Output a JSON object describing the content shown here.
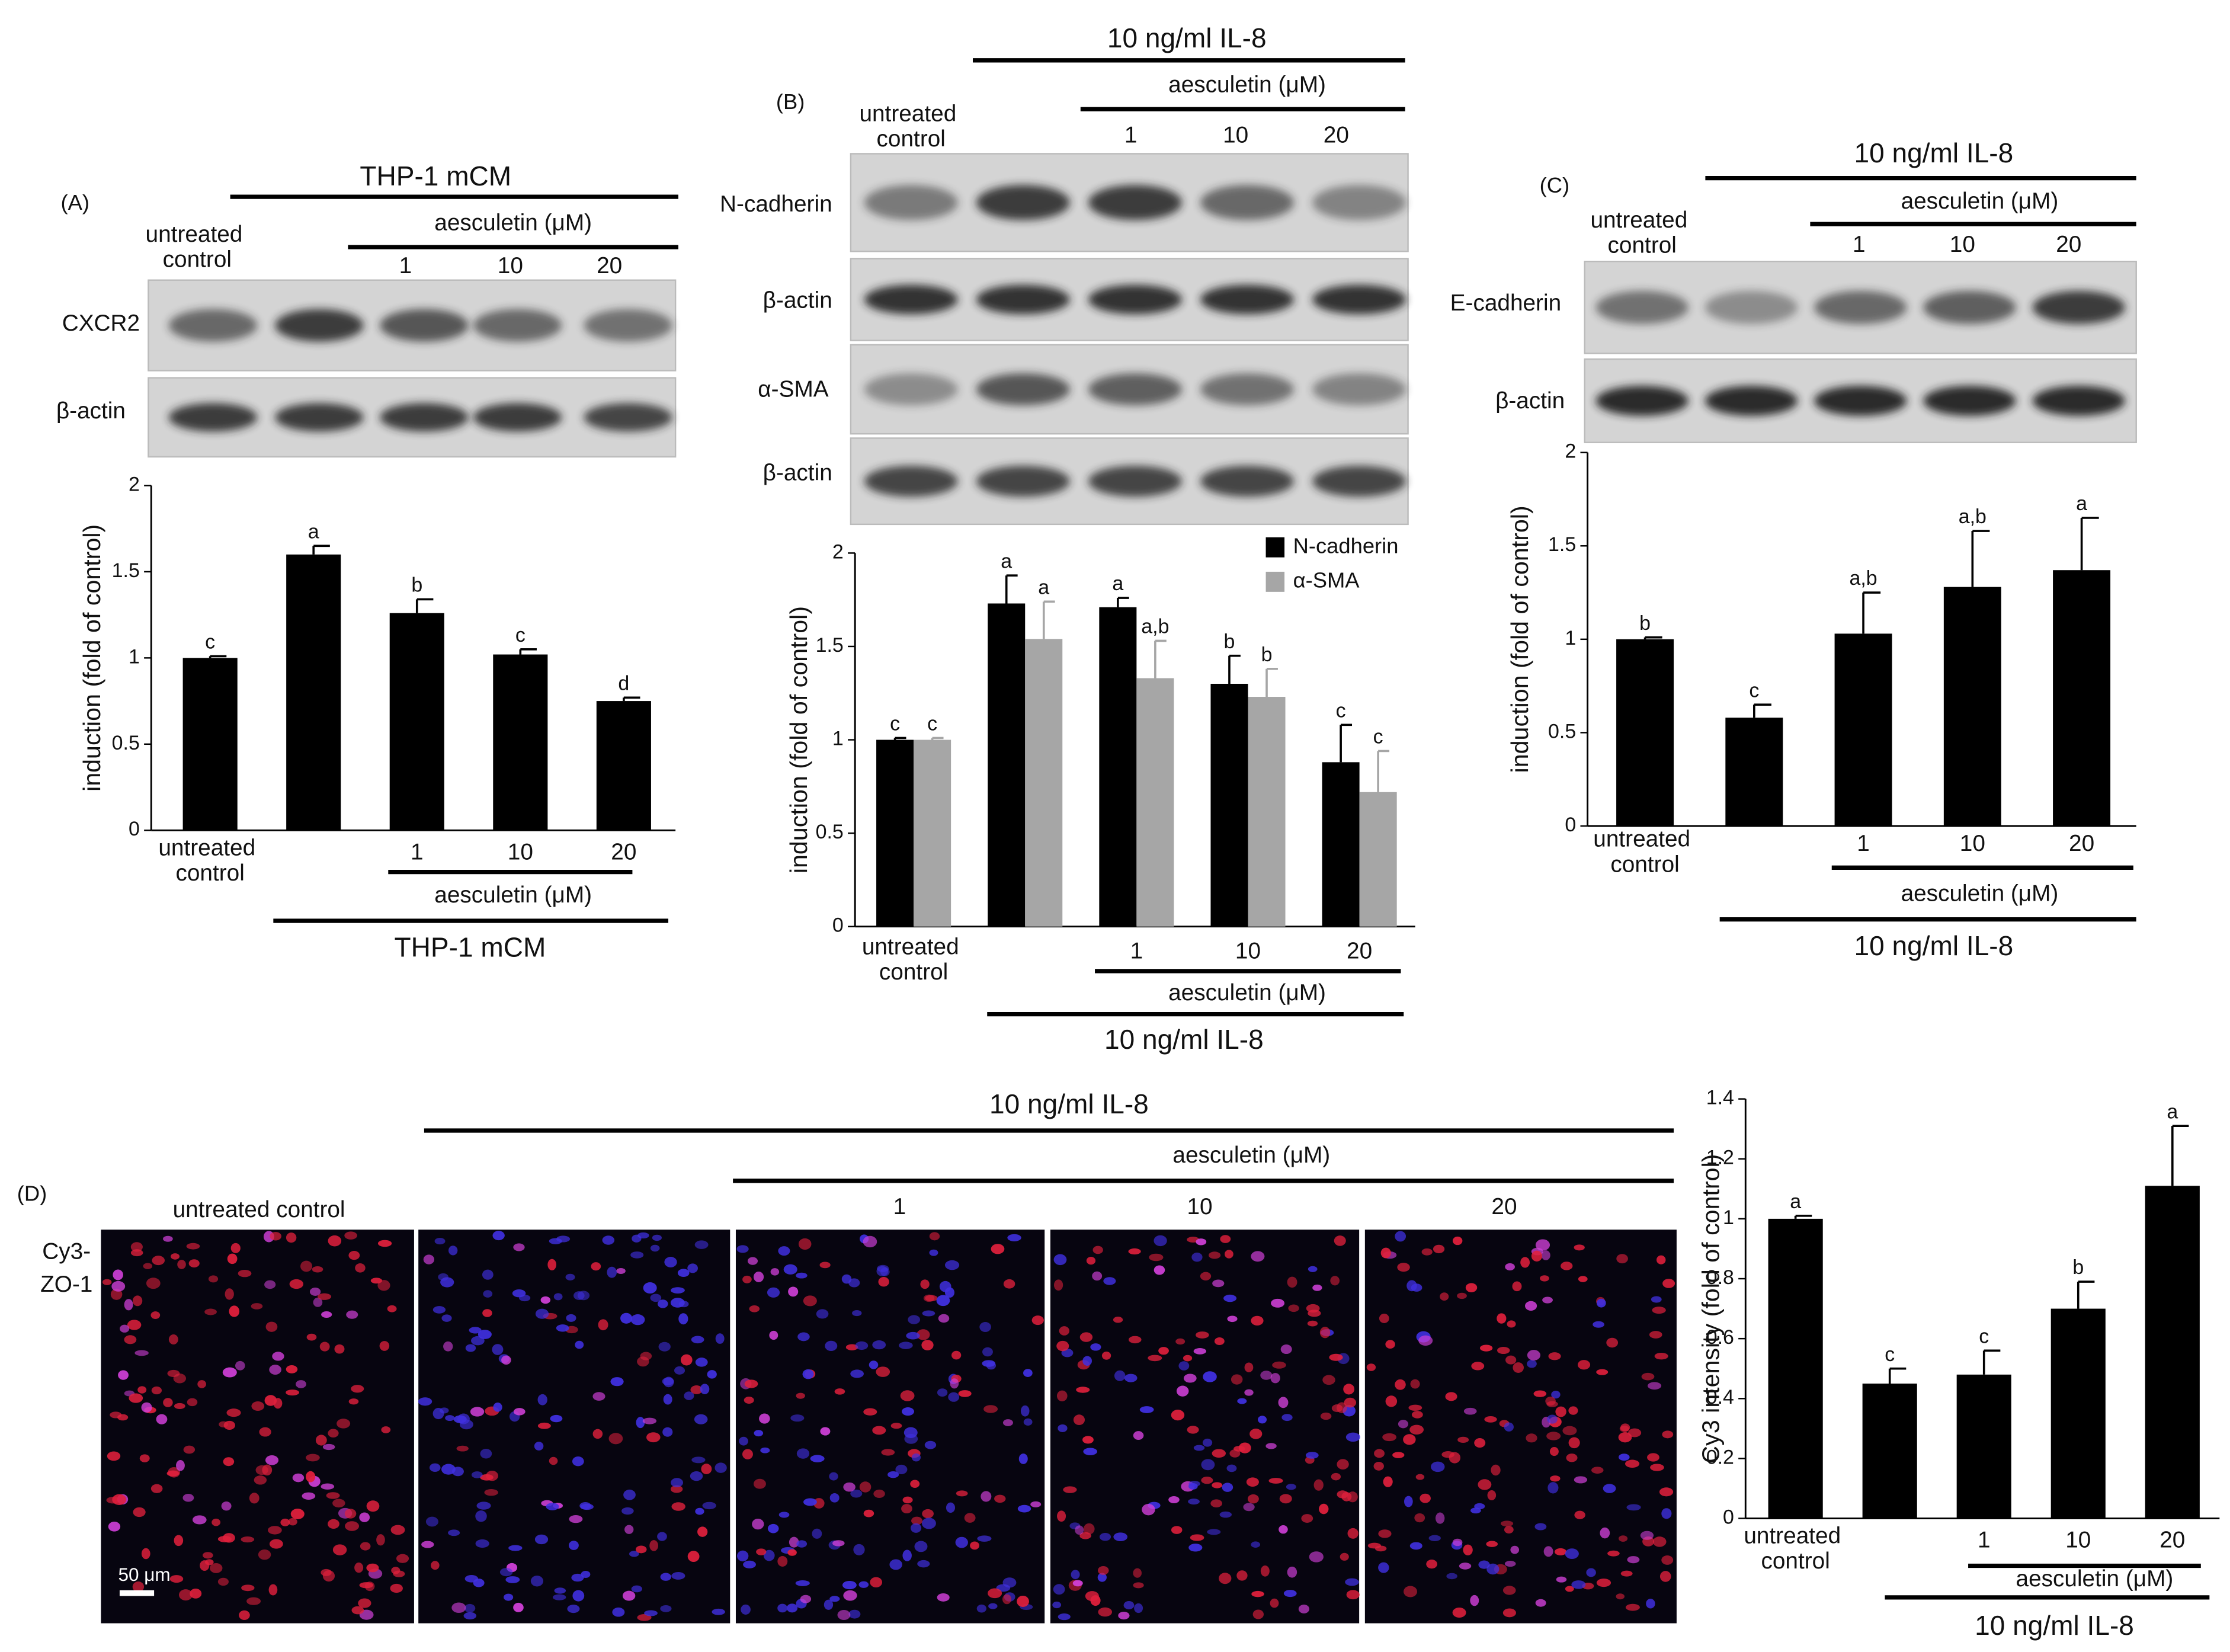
{
  "chart_data": [
    {
      "type": "bar",
      "panel": "(A)",
      "y_label": "induction (fold of control)",
      "categories": [
        "untreated control",
        null,
        "1",
        "10",
        "20"
      ],
      "values": [
        1.0,
        1.6,
        1.26,
        1.02,
        0.75
      ],
      "errors": [
        0.01,
        0.05,
        0.08,
        0.03,
        0.02
      ],
      "letters": [
        "c",
        "a",
        "b",
        "c",
        "d"
      ],
      "color": "#000000",
      "ylim": [
        0,
        2
      ],
      "yticks": [
        0,
        0.5,
        1,
        1.5,
        2
      ],
      "grid": false,
      "bottom": {
        "inhibitor": "aesculetin (μM)",
        "treatment": "THP-1 mCM"
      },
      "blot": {
        "header": {
          "treatment": "THP-1 mCM",
          "inhibitor": "aesculetin (μM)",
          "control": "untreated control",
          "doses": [
            "1",
            "10",
            "20"
          ]
        },
        "rows": [
          "CXCR2",
          "β-actin"
        ]
      }
    },
    {
      "type": "bar",
      "panel": "(B)",
      "y_label": "induction (fold of control)",
      "categories": [
        "untreated control",
        null,
        "1",
        "10",
        "20"
      ],
      "series": [
        {
          "name": "N-cadherin",
          "color": "#000000",
          "values": [
            1.0,
            1.73,
            1.71,
            1.3,
            0.88
          ],
          "errors": [
            0.01,
            0.15,
            0.05,
            0.15,
            0.2
          ],
          "letters": [
            "c",
            "a",
            "a",
            "b",
            "c"
          ]
        },
        {
          "name": "α-SMA",
          "color": "#a6a6a6",
          "values": [
            1.0,
            1.54,
            1.33,
            1.23,
            0.72
          ],
          "errors": [
            0.01,
            0.2,
            0.2,
            0.15,
            0.22
          ],
          "letters": [
            "c",
            "a",
            "a,b",
            "b",
            "c"
          ]
        }
      ],
      "legend": "upper right",
      "ylim": [
        0,
        2
      ],
      "yticks": [
        0,
        0.5,
        1,
        1.5,
        2
      ],
      "grid": false,
      "bottom": {
        "inhibitor": "aesculetin (μM)",
        "treatment": "10 ng/ml IL-8"
      },
      "blot": {
        "header": {
          "treatment": "10 ng/ml IL-8",
          "inhibitor": "aesculetin (μM)",
          "control": "untreated control",
          "doses": [
            "1",
            "10",
            "20"
          ]
        },
        "rows": [
          "N-cadherin",
          "β-actin",
          "α-SMA",
          "β-actin"
        ]
      }
    },
    {
      "type": "bar",
      "panel": "(C)",
      "y_label": "induction (fold of control)",
      "categories": [
        "untreated control",
        null,
        "1",
        "10",
        "20"
      ],
      "values": [
        1.0,
        0.58,
        1.03,
        1.28,
        1.37
      ],
      "errors": [
        0.01,
        0.07,
        0.22,
        0.3,
        0.28
      ],
      "letters": [
        "b",
        "c",
        "a,b",
        "a,b",
        "a"
      ],
      "color": "#000000",
      "ylim": [
        0,
        2
      ],
      "yticks": [
        0,
        0.5,
        1,
        1.5,
        2
      ],
      "grid": false,
      "bottom": {
        "inhibitor": "aesculetin (μM)",
        "treatment": "10 ng/ml IL-8"
      },
      "blot": {
        "header": {
          "treatment": "10 ng/ml IL-8",
          "inhibitor": "aesculetin (μM)",
          "control": "untreated control",
          "doses": [
            "1",
            "10",
            "20"
          ]
        },
        "rows": [
          "E-cadherin",
          "β-actin"
        ]
      }
    },
    {
      "type": "bar",
      "panel": "(D)",
      "y_label": "Cy3 intensity (fold of control)",
      "categories": [
        "untreated control",
        null,
        "1",
        "10",
        "20"
      ],
      "values": [
        1.0,
        0.45,
        0.48,
        0.7,
        1.11
      ],
      "errors": [
        0.01,
        0.05,
        0.08,
        0.09,
        0.2
      ],
      "letters": [
        "a",
        "c",
        "c",
        "b",
        "a"
      ],
      "color": "#000000",
      "ylim": [
        0,
        1.4
      ],
      "yticks": [
        0,
        0.2,
        0.4,
        0.6,
        0.8,
        1,
        1.2,
        1.4
      ],
      "grid": false,
      "bottom": {
        "inhibitor": "aesculetin (μM)",
        "treatment": "10 ng/ml IL-8"
      },
      "micrographs": {
        "treatment": "10 ng/ml IL-8",
        "inhibitor": "aesculetin (μM)",
        "control": "untreated control",
        "doses": [
          "1",
          "10",
          "20"
        ],
        "stain": [
          "Cy3-",
          "ZO-1"
        ],
        "scale_bar": "50 μm"
      }
    }
  ]
}
